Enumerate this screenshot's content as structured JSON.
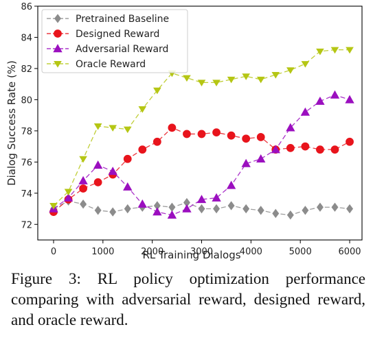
{
  "chart_data": {
    "type": "line",
    "xlabel": "RL Training Dialogs",
    "ylabel": "Dialog Success Rate (%)",
    "xlim": [
      -320,
      6250
    ],
    "ylim": [
      71,
      86
    ],
    "xticks": [
      0,
      1000,
      2000,
      3000,
      4000,
      5000,
      6000
    ],
    "xtick_labels": [
      "0",
      "1000",
      "2000",
      "3000",
      "4000",
      "5000",
      "6000"
    ],
    "yticks": [
      72,
      74,
      76,
      78,
      80,
      82,
      84,
      86
    ],
    "ytick_labels": [
      "72",
      "74",
      "76",
      "78",
      "80",
      "82",
      "84",
      "86"
    ],
    "grid": false,
    "legend_position": "top-left",
    "x": [
      0,
      300,
      600,
      900,
      1200,
      1500,
      1800,
      2100,
      2400,
      2700,
      3000,
      3300,
      3600,
      3900,
      4200,
      4500,
      4800,
      5100,
      5400,
      5700,
      6000
    ],
    "series": [
      {
        "name": "Pretrained Baseline",
        "color": "#8c8c8c",
        "marker": "diamond",
        "values": [
          73.0,
          73.5,
          73.3,
          72.9,
          72.8,
          73.0,
          73.1,
          73.2,
          73.1,
          73.4,
          73.0,
          73.0,
          73.2,
          73.0,
          72.9,
          72.7,
          72.6,
          72.9,
          73.1,
          73.1,
          73.0
        ]
      },
      {
        "name": "Designed Reward",
        "color": "#e8141c",
        "marker": "circle",
        "values": [
          72.8,
          73.6,
          74.3,
          74.7,
          75.2,
          76.2,
          76.8,
          77.3,
          78.2,
          77.8,
          77.8,
          77.9,
          77.7,
          77.5,
          77.6,
          76.8,
          76.9,
          77.0,
          76.8,
          76.8,
          77.3
        ]
      },
      {
        "name": "Adversarial Reward",
        "color": "#9b0fbf",
        "marker": "triangle",
        "values": [
          73.0,
          73.7,
          74.8,
          75.8,
          75.4,
          74.4,
          73.3,
          72.8,
          72.6,
          73.0,
          73.6,
          73.7,
          74.5,
          75.9,
          76.2,
          76.8,
          78.2,
          79.2,
          79.9,
          80.3,
          80.0
        ]
      },
      {
        "name": "Oracle Reward",
        "color": "#b5c614",
        "marker": "triangle-down",
        "values": [
          73.2,
          74.1,
          76.2,
          78.3,
          78.2,
          78.1,
          79.4,
          80.6,
          81.7,
          81.4,
          81.1,
          81.1,
          81.3,
          81.5,
          81.3,
          81.6,
          81.9,
          82.3,
          83.1,
          83.2,
          83.2
        ]
      }
    ]
  },
  "caption": "Figure 3:   RL policy optimization performance comparing with adversarial reward, designed reward, and oracle reward."
}
